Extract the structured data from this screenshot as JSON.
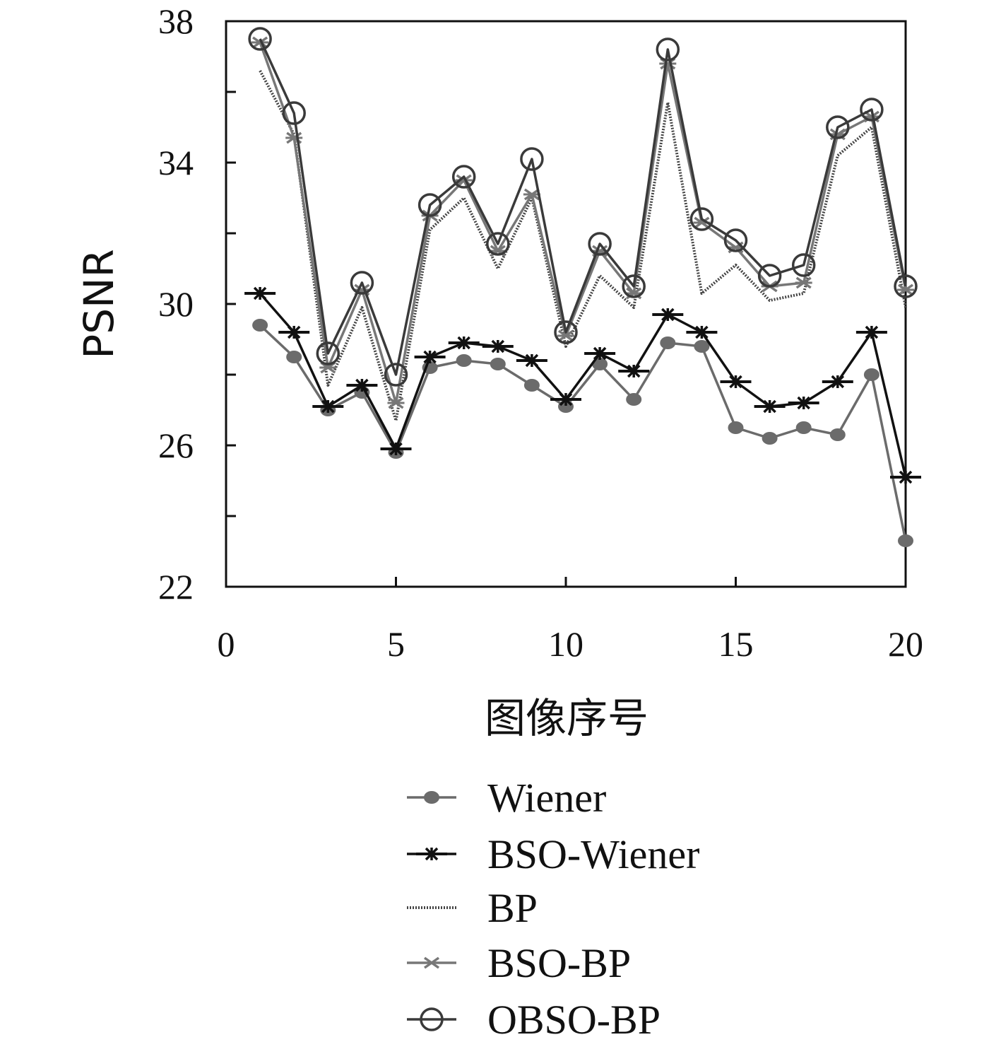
{
  "chart_data": {
    "type": "line",
    "title": "",
    "xlabel": "图像序号",
    "ylabel": "PSNR",
    "xlim": [
      0,
      20
    ],
    "ylim": [
      22,
      38
    ],
    "xticks": [
      0,
      5,
      10,
      15,
      20
    ],
    "yticks_labeled": [
      22,
      26,
      30,
      34,
      38
    ],
    "yticks_minor": [
      24,
      28,
      32,
      36
    ],
    "grid": false,
    "legend_position": "bottom",
    "x": [
      1,
      2,
      3,
      4,
      5,
      6,
      7,
      8,
      9,
      10,
      11,
      12,
      13,
      14,
      15,
      16,
      17,
      18,
      19,
      20
    ],
    "series": [
      {
        "name": "Wiener",
        "marker": "filled-circle",
        "line": "solid",
        "color": "#6b6b6b",
        "values": [
          29.4,
          28.5,
          27.0,
          27.5,
          25.8,
          28.2,
          28.4,
          28.3,
          27.7,
          27.1,
          28.3,
          27.3,
          28.9,
          28.8,
          26.5,
          26.2,
          26.5,
          26.3,
          28.0,
          23.3
        ]
      },
      {
        "name": "BSO-Wiener",
        "marker": "star",
        "line": "solid",
        "color": "#111111",
        "values": [
          30.3,
          29.2,
          27.1,
          27.7,
          25.9,
          28.5,
          28.9,
          28.8,
          28.4,
          27.3,
          28.6,
          28.1,
          29.7,
          29.2,
          27.8,
          27.1,
          27.2,
          27.8,
          29.2,
          25.1
        ]
      },
      {
        "name": "BP",
        "marker": "none",
        "line": "dotted",
        "color": "#444444",
        "values": [
          36.6,
          34.8,
          27.7,
          29.9,
          26.7,
          32.1,
          33.0,
          31.0,
          33.0,
          28.8,
          30.8,
          29.9,
          35.7,
          30.3,
          31.1,
          30.1,
          30.3,
          34.2,
          35.0,
          29.9
        ]
      },
      {
        "name": "BSO-BP",
        "marker": "x",
        "line": "solid",
        "color": "#777777",
        "values": [
          37.4,
          34.7,
          28.2,
          30.4,
          27.2,
          32.5,
          33.5,
          31.5,
          33.1,
          29.1,
          31.5,
          30.3,
          36.8,
          32.3,
          31.6,
          30.5,
          30.6,
          34.8,
          35.3,
          30.4
        ]
      },
      {
        "name": "OBSO-BP",
        "marker": "open-circle",
        "line": "solid",
        "color": "#3a3a3a",
        "values": [
          37.5,
          35.4,
          28.6,
          30.6,
          28.0,
          32.8,
          33.6,
          31.7,
          34.1,
          29.2,
          31.7,
          30.5,
          37.2,
          32.4,
          31.8,
          30.8,
          31.1,
          35.0,
          35.5,
          30.5
        ]
      }
    ]
  }
}
